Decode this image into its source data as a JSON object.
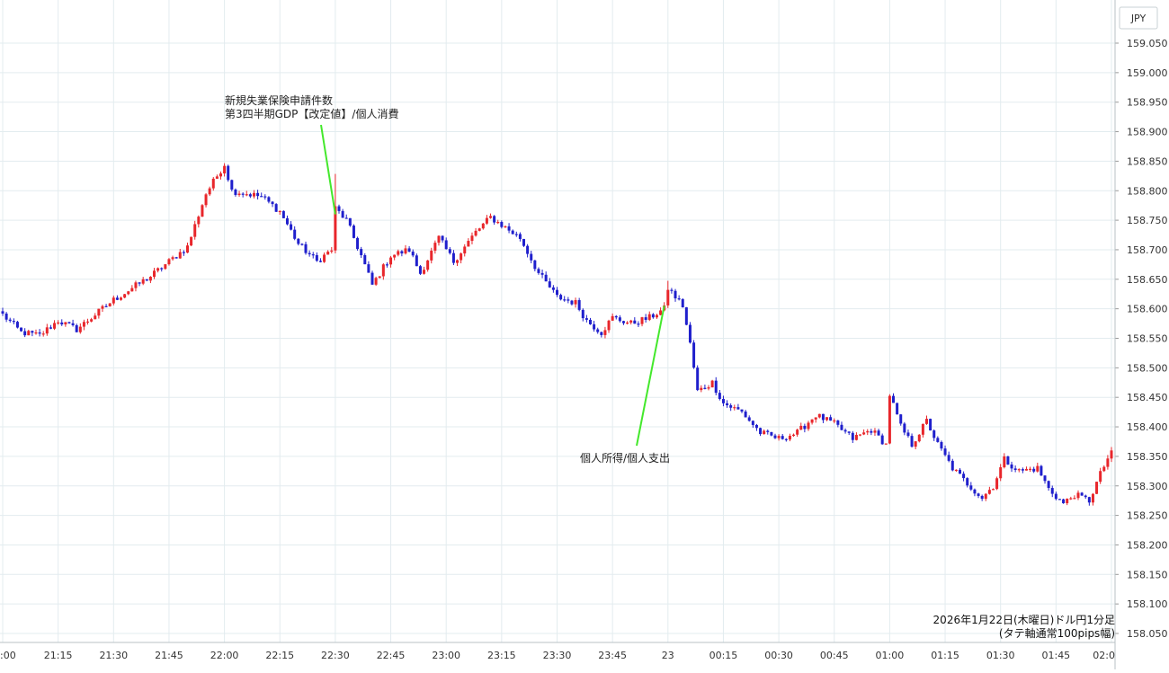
{
  "chart_data": {
    "type": "candlestick",
    "currency_label": "JPY",
    "caption_lines": [
      "2026年1月22日(木曜日)ドル円1分足",
      "(タテ軸通常100pips幅)"
    ],
    "ylim": [
      158.025,
      159.07
    ],
    "y_ticks": [
      "159.050",
      "159.000",
      "158.950",
      "158.900",
      "158.850",
      "158.800",
      "158.750",
      "158.700",
      "158.650",
      "158.600",
      "158.550",
      "158.500",
      "158.450",
      "158.400",
      "158.350",
      "158.300",
      "158.250",
      "158.200",
      "158.150",
      "158.100",
      "158.050"
    ],
    "x_ticks": [
      ":00",
      "21:15",
      "21:30",
      "21:45",
      "22:00",
      "22:15",
      "22:30",
      "22:45",
      "23:00",
      "23:15",
      "23:30",
      "23:45",
      "23",
      "00:15",
      "00:30",
      "00:45",
      "01:00",
      "01:15",
      "01:30",
      "01:45",
      "02:0"
    ],
    "grid": true,
    "colors": {
      "up": "#e8262b",
      "down": "#1f1fcc",
      "grid": "#e3ecef",
      "annotation_line": "#44e82c"
    },
    "annotations": [
      {
        "lines": [
          "新規失業保険申請件数",
          "第3四半期GDP【改定値】/個人消費"
        ],
        "time": "22:30",
        "price": 158.76
      },
      {
        "lines": [
          "個人所得/個人支出"
        ],
        "time": "23:59",
        "price": 158.605
      }
    ],
    "key_points": [
      {
        "time": "21:00",
        "price": 158.59
      },
      {
        "time": "21:05",
        "price": 158.56
      },
      {
        "time": "21:10",
        "price": 158.555
      },
      {
        "time": "21:15",
        "price": 158.58
      },
      {
        "time": "21:20",
        "price": 158.565
      },
      {
        "time": "21:30",
        "price": 158.615
      },
      {
        "time": "21:40",
        "price": 158.655
      },
      {
        "time": "21:50",
        "price": 158.705
      },
      {
        "time": "21:55",
        "price": 158.795
      },
      {
        "time": "22:00",
        "price": 158.845
      },
      {
        "time": "22:02",
        "price": 158.8
      },
      {
        "time": "22:10",
        "price": 158.79
      },
      {
        "time": "22:15",
        "price": 158.765
      },
      {
        "time": "22:20",
        "price": 158.71
      },
      {
        "time": "22:25",
        "price": 158.68
      },
      {
        "time": "22:29",
        "price": 158.7
      },
      {
        "time": "22:30",
        "price": 158.77
      },
      {
        "time": "22:33",
        "price": 158.75
      },
      {
        "time": "22:37",
        "price": 158.69
      },
      {
        "time": "22:40",
        "price": 158.64
      },
      {
        "time": "22:45",
        "price": 158.69
      },
      {
        "time": "22:50",
        "price": 158.7
      },
      {
        "time": "22:53",
        "price": 158.66
      },
      {
        "time": "22:58",
        "price": 158.72
      },
      {
        "time": "23:02",
        "price": 158.68
      },
      {
        "time": "23:08",
        "price": 158.73
      },
      {
        "time": "23:12",
        "price": 158.755
      },
      {
        "time": "23:20",
        "price": 158.72
      },
      {
        "time": "23:25",
        "price": 158.66
      },
      {
        "time": "23:30",
        "price": 158.62
      },
      {
        "time": "23:35",
        "price": 158.61
      },
      {
        "time": "23:38",
        "price": 158.58
      },
      {
        "time": "23:42",
        "price": 158.56
      },
      {
        "time": "23:45",
        "price": 158.585
      },
      {
        "time": "23:50",
        "price": 158.575
      },
      {
        "time": "23:55",
        "price": 158.585
      },
      {
        "time": "23:59",
        "price": 158.6
      },
      {
        "time": "00:00",
        "price": 158.635
      },
      {
        "time": "00:04",
        "price": 158.605
      },
      {
        "time": "00:06",
        "price": 158.54
      },
      {
        "time": "00:08",
        "price": 158.46
      },
      {
        "time": "00:12",
        "price": 158.475
      },
      {
        "time": "00:15",
        "price": 158.44
      },
      {
        "time": "00:20",
        "price": 158.425
      },
      {
        "time": "00:25",
        "price": 158.39
      },
      {
        "time": "00:30",
        "price": 158.38
      },
      {
        "time": "00:35",
        "price": 158.39
      },
      {
        "time": "00:40",
        "price": 158.42
      },
      {
        "time": "00:45",
        "price": 158.405
      },
      {
        "time": "00:50",
        "price": 158.38
      },
      {
        "time": "00:55",
        "price": 158.395
      },
      {
        "time": "00:59",
        "price": 158.37
      },
      {
        "time": "01:00",
        "price": 158.455
      },
      {
        "time": "01:03",
        "price": 158.4
      },
      {
        "time": "01:06",
        "price": 158.37
      },
      {
        "time": "01:10",
        "price": 158.41
      },
      {
        "time": "01:13",
        "price": 158.37
      },
      {
        "time": "01:17",
        "price": 158.33
      },
      {
        "time": "01:20",
        "price": 158.31
      },
      {
        "time": "01:25",
        "price": 158.28
      },
      {
        "time": "01:28",
        "price": 158.3
      },
      {
        "time": "01:31",
        "price": 158.345
      },
      {
        "time": "01:35",
        "price": 158.325
      },
      {
        "time": "01:40",
        "price": 158.33
      },
      {
        "time": "01:43",
        "price": 158.295
      },
      {
        "time": "01:47",
        "price": 158.27
      },
      {
        "time": "01:50",
        "price": 158.285
      },
      {
        "time": "01:54",
        "price": 158.275
      },
      {
        "time": "01:57",
        "price": 158.32
      },
      {
        "time": "02:00",
        "price": 158.36
      }
    ]
  }
}
